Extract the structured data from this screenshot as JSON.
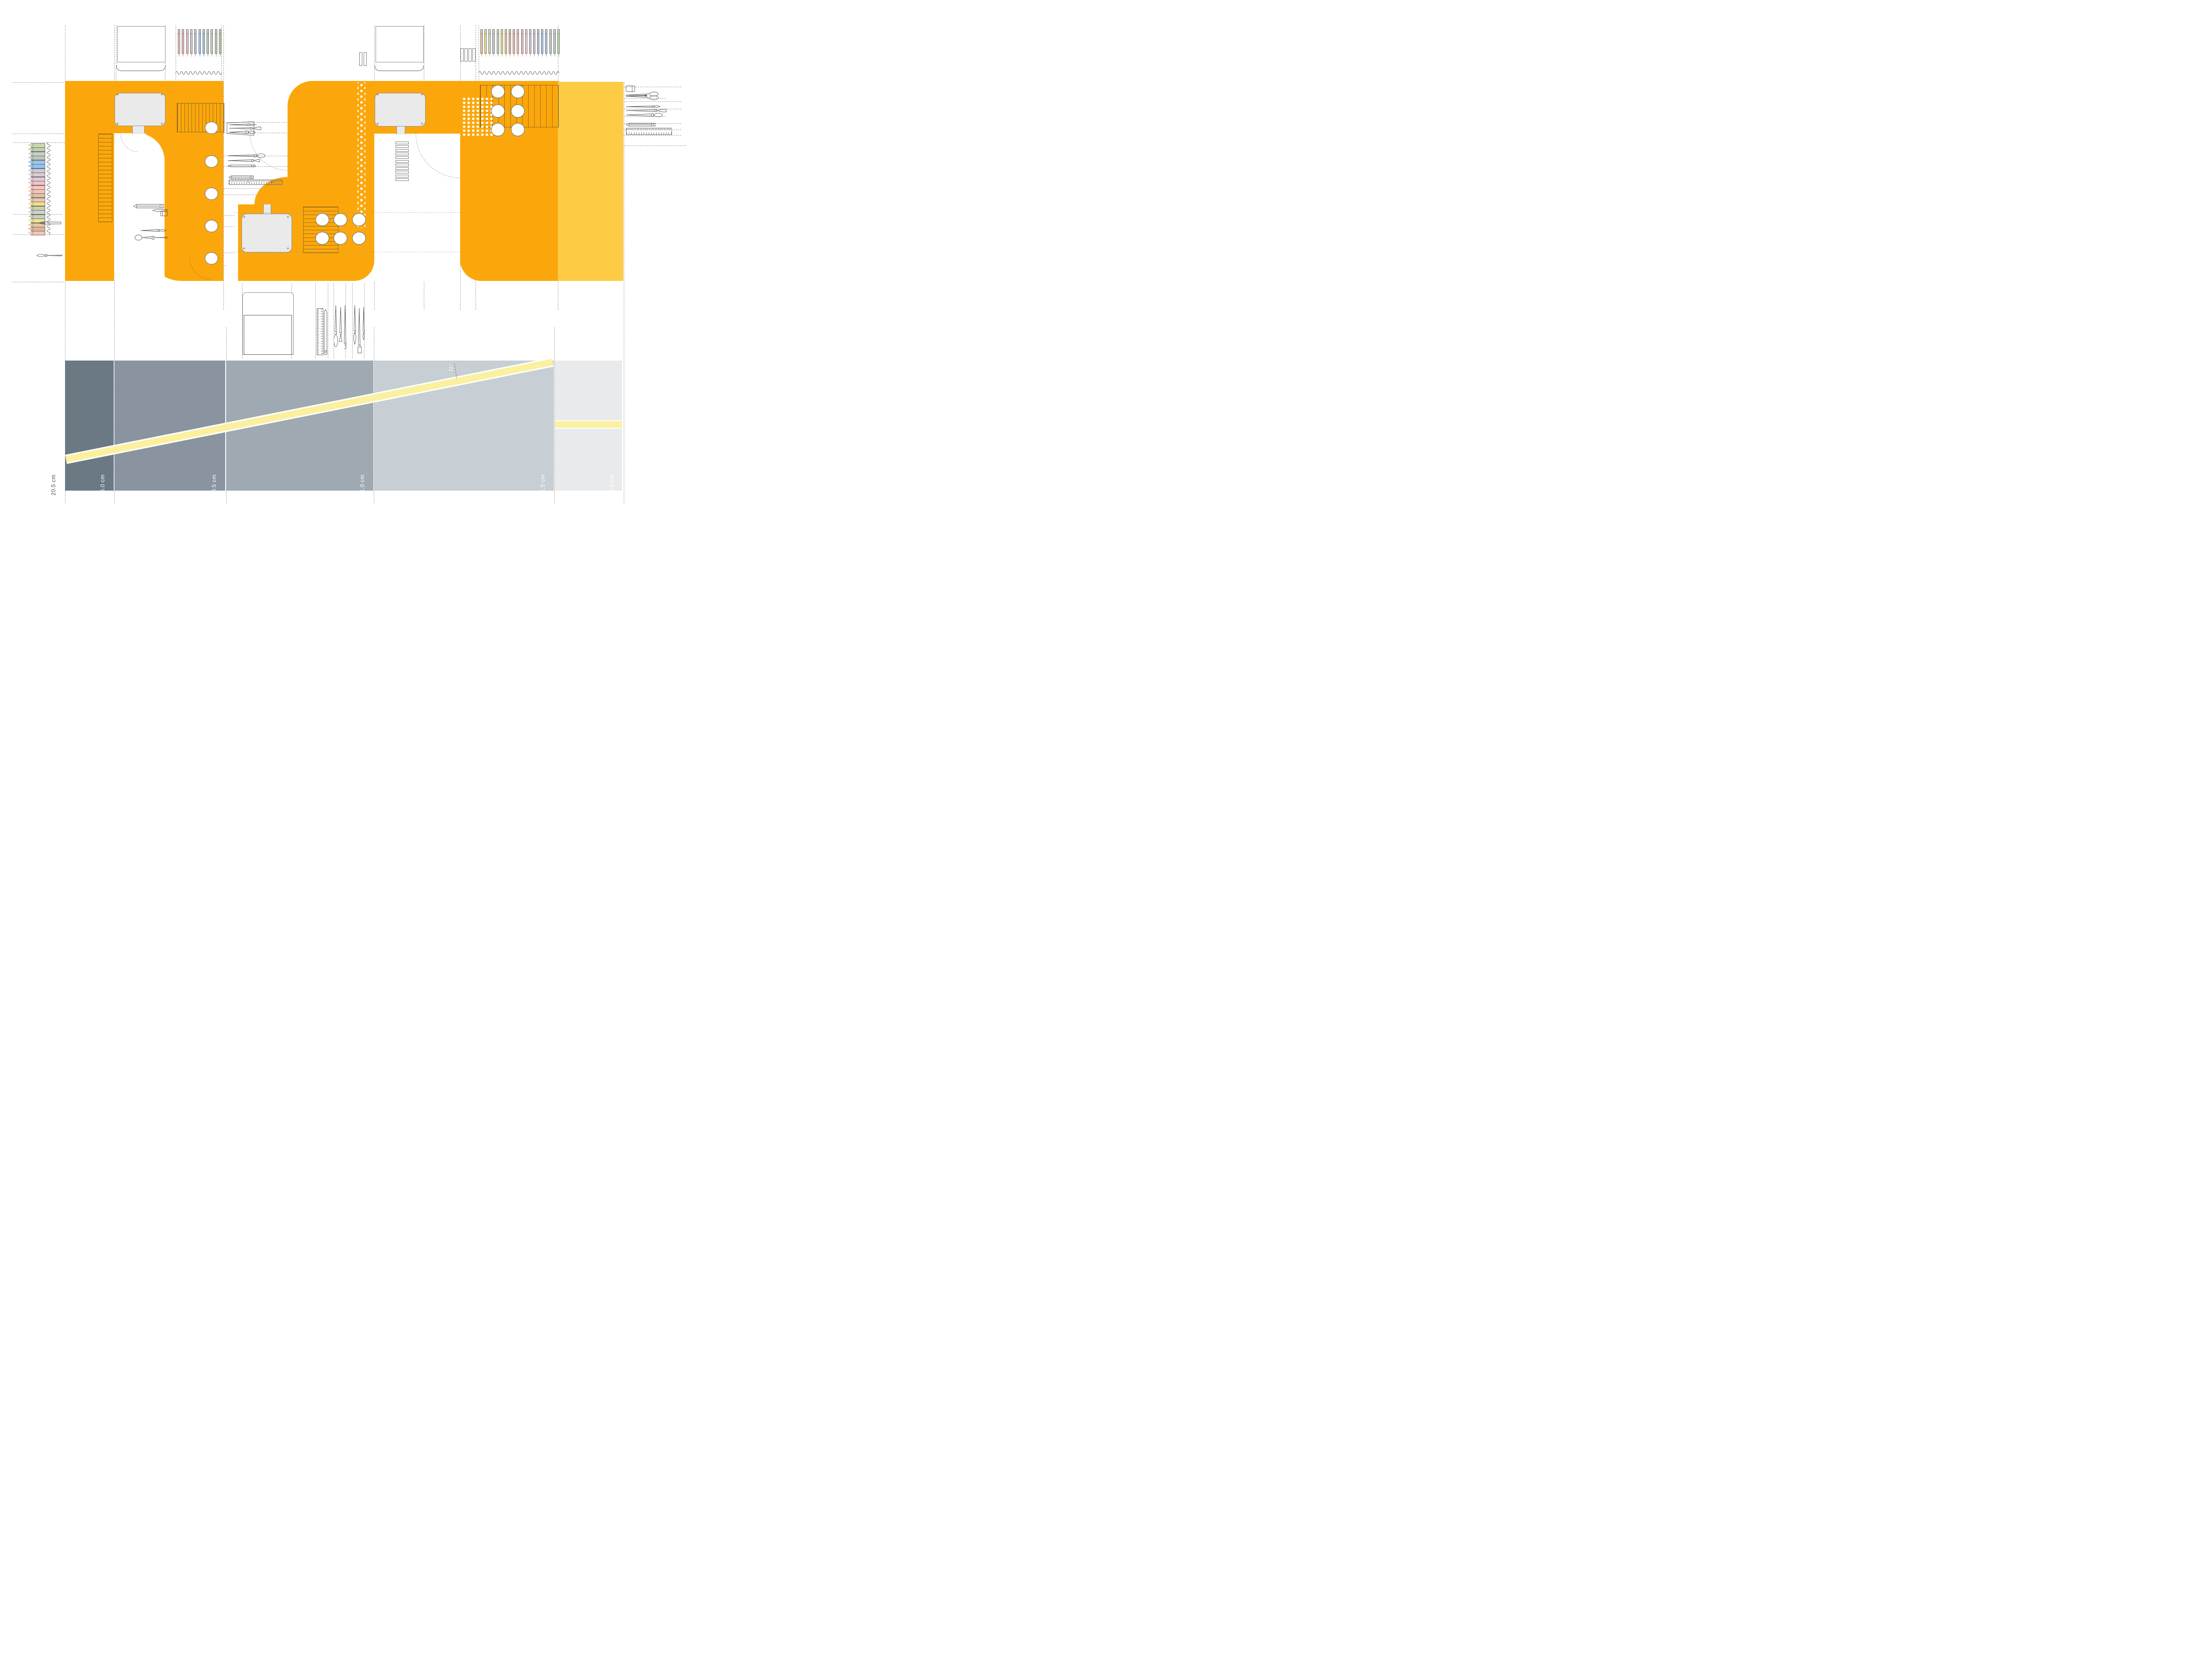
{
  "drawing": {
    "type": "desk plan and inclined section drawing",
    "angle_label": "11°",
    "dimension_labels": [
      "20.5 cm",
      "26.0 cm",
      "40.5 cm",
      "61.0 cm",
      "81.5 cm",
      "45.5 cm"
    ],
    "marks": {
      "plus": "+",
      "minus": "−"
    }
  },
  "colors": {
    "surface_orange": "#FBA70B",
    "surface_overlay": "#FDCB44",
    "stripe_yellow": "#FBF0A0",
    "bar_yellow": "#FBF0A0",
    "tray_gray": "#EAEAEA",
    "panel_grays": [
      "#6B7985",
      "#8994A0",
      "#9FA9B2",
      "#C7CFD5",
      "#E9EAEB"
    ],
    "label_dark": "#4A5560",
    "label_light": "#FFFFFF"
  },
  "pencils": {
    "group_a": {
      "colors": [
        "#F0C3B5",
        "#F4B9BB",
        "#E2C6D4",
        "#D8CCC8",
        "#C7C5D8",
        "#A6CBEE",
        "#A9C7E9",
        "#C2CCC0",
        "#CBD4C7",
        "#C1CCC3",
        "#BED7A0"
      ]
    },
    "group_b": {
      "colors": [
        "#E6C3A2",
        "#EFE285",
        "#D6DFC5",
        "#C9CDD0",
        "#CBD4C2",
        "#EEE07E",
        "#E9C9A4",
        "#E2BE9E",
        "#F4C0B4",
        "#F6C3BE",
        "#F5B9C0",
        "#EFD3DC",
        "#DCC8DA",
        "#CFC9D8",
        "#C6C3DA",
        "#A5C8EC",
        "#AECBE8",
        "#C6D0C2",
        "#C3CCC6",
        "#BED8A4"
      ]
    },
    "crayons": {
      "colors": [
        "#C9DCA8",
        "#C3CDBB",
        "#C8D2C4",
        "#BFC9BD",
        "#9CC5E8",
        "#92C4F0",
        "#CCCBDE",
        "#D9CCCB",
        "#E0CBD8",
        "#F6C2C8",
        "#F8C7BE",
        "#F4C4B6",
        "#E3BFA8",
        "#E8C8AD",
        "#F0E08A",
        "#CECFA8",
        "#CDD2CC",
        "#C7D0BF",
        "#EFE38E",
        "#E5C8A4",
        "#DDB896",
        "#F6C3BC"
      ]
    }
  }
}
